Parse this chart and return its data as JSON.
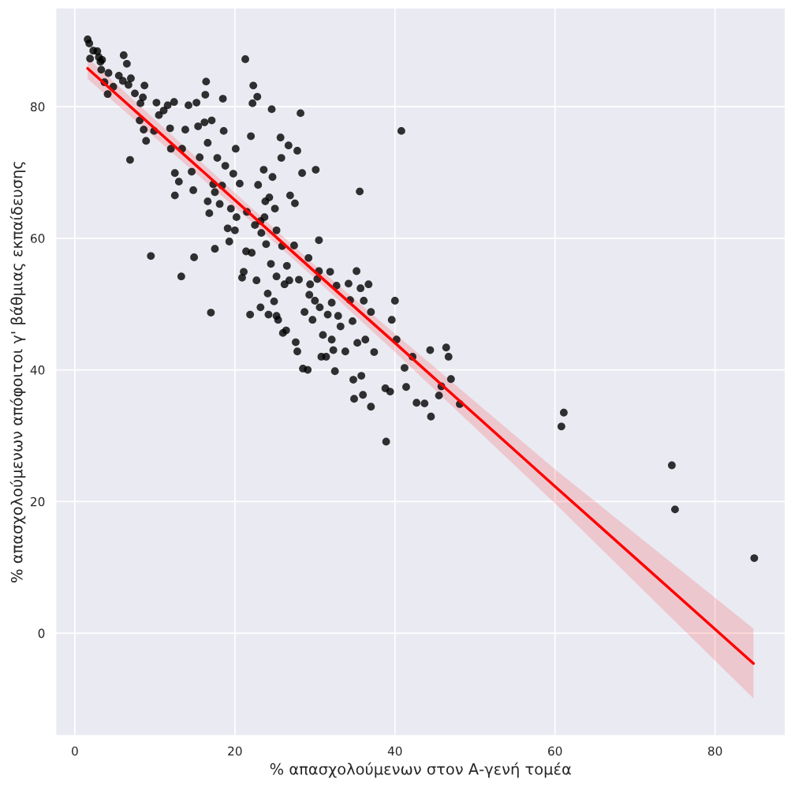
{
  "chart_data": {
    "type": "scatter",
    "xlabel": "% απασχολούμενων στον Α-γενή τομέα",
    "ylabel": "% απασχολούμενων απόφοιτοι γ' βάθμιας εκπαίδευσης",
    "xlim": [
      -2.4,
      88.8
    ],
    "ylim": [
      -15.6,
      95.0
    ],
    "xticks": [
      0,
      20,
      40,
      60,
      80
    ],
    "yticks": [
      0,
      20,
      40,
      60,
      80
    ],
    "grid": true,
    "series": [
      {
        "color": "#000000",
        "marker": "circle",
        "x": [
          1.6,
          1.8,
          1.9,
          2.3,
          2.8,
          3.0,
          3.2,
          3.4,
          3.3,
          3.7,
          4.2,
          4.1,
          4.8,
          5.5,
          6.0,
          6.1,
          6.5,
          6.7,
          7.0,
          6.9,
          7.5,
          8.2,
          8.1,
          8.5,
          8.7,
          8.9,
          8.6,
          9.5,
          9.9,
          10.2,
          10.5,
          11.1,
          11.6,
          11.9,
          12.0,
          12.4,
          12.5,
          12.5,
          13.0,
          13.3,
          13.4,
          13.8,
          14.2,
          14.6,
          14.8,
          14.9,
          15.2,
          15.4,
          15.6,
          16.2,
          16.3,
          16.4,
          16.6,
          16.6,
          16.8,
          17.0,
          17.1,
          17.3,
          17.5,
          17.5,
          17.8,
          18.1,
          18.4,
          18.6,
          18.5,
          18.8,
          19.1,
          19.3,
          19.5,
          19.8,
          20.0,
          20.1,
          20.2,
          20.6,
          20.9,
          21.1,
          21.3,
          21.4,
          21.5,
          21.9,
          22.0,
          22.1,
          22.2,
          22.3,
          22.5,
          22.7,
          22.8,
          22.9,
          23.2,
          23.3,
          23.6,
          23.7,
          23.9,
          24.1,
          24.2,
          24.3,
          24.5,
          24.6,
          24.7,
          24.9,
          25.0,
          25.2,
          25.4,
          25.7,
          25.8,
          25.9,
          26.0,
          26.2,
          26.5,
          26.7,
          26.9,
          27.4,
          27.5,
          27.6,
          27.8,
          27.8,
          28.0,
          28.2,
          28.4,
          28.5,
          28.7,
          29.1,
          29.2,
          29.3,
          29.7,
          30.0,
          30.1,
          30.3,
          30.5,
          30.6,
          30.8,
          31.0,
          31.4,
          31.6,
          31.9,
          32.1,
          32.3,
          32.5,
          32.7,
          32.9,
          33.2,
          33.8,
          34.2,
          34.4,
          34.7,
          34.8,
          34.9,
          35.2,
          35.3,
          35.6,
          35.7,
          35.8,
          36.0,
          36.1,
          36.3,
          36.7,
          37.0,
          37.0,
          37.4,
          38.8,
          38.9,
          39.4,
          39.6,
          40.0,
          40.2,
          40.8,
          41.2,
          41.4,
          42.2,
          42.7,
          43.7,
          44.4,
          44.5,
          45.5,
          45.8,
          46.4,
          46.7,
          47.0,
          48.1,
          60.8,
          61.1,
          74.6,
          75.0,
          84.9,
          23.2,
          23.8,
          25.2,
          26.8,
          29.4,
          32.1,
          30.5,
          25.2,
          26.4
        ],
        "values": [
          90.2,
          89.6,
          87.3,
          88.5,
          88.4,
          87.5,
          86.8,
          87.1,
          85.6,
          83.7,
          85.1,
          81.9,
          83.0,
          84.7,
          83.9,
          87.8,
          86.5,
          83.3,
          84.3,
          71.9,
          82.0,
          80.5,
          77.9,
          81.4,
          83.2,
          74.8,
          76.5,
          57.3,
          76.3,
          80.6,
          78.7,
          79.4,
          80.2,
          76.7,
          73.6,
          80.7,
          69.9,
          66.5,
          68.6,
          54.2,
          73.6,
          76.5,
          80.2,
          70.1,
          67.3,
          57.1,
          80.6,
          77.0,
          72.3,
          77.6,
          81.8,
          83.8,
          74.5,
          65.6,
          63.8,
          48.7,
          77.9,
          68.2,
          67.0,
          58.4,
          72.2,
          65.2,
          68.0,
          76.3,
          81.2,
          71.0,
          61.5,
          59.5,
          64.5,
          69.8,
          61.2,
          73.6,
          63.2,
          68.3,
          54.0,
          54.9,
          87.2,
          58.0,
          64.0,
          48.4,
          75.5,
          57.8,
          80.5,
          83.2,
          62.0,
          53.6,
          81.5,
          68.1,
          49.5,
          60.8,
          70.4,
          63.2,
          59.1,
          51.6,
          48.4,
          66.2,
          56.1,
          79.6,
          69.3,
          50.4,
          64.5,
          54.2,
          47.6,
          75.3,
          72.2,
          58.8,
          45.6,
          53.0,
          55.8,
          74.1,
          66.5,
          58.9,
          65.3,
          44.2,
          73.3,
          42.8,
          53.7,
          79.0,
          69.9,
          40.2,
          48.8,
          40.0,
          57.0,
          51.4,
          47.6,
          50.5,
          70.4,
          53.8,
          59.7,
          49.5,
          42.0,
          45.3,
          42.0,
          48.4,
          54.9,
          44.6,
          43.0,
          39.8,
          52.8,
          48.2,
          46.6,
          42.8,
          53.1,
          50.6,
          47.4,
          38.5,
          35.6,
          55.0,
          44.1,
          67.1,
          52.4,
          39.1,
          36.2,
          50.5,
          44.6,
          53.0,
          48.8,
          34.4,
          42.7,
          37.2,
          29.1,
          36.7,
          47.6,
          50.5,
          44.6,
          76.3,
          40.3,
          37.4,
          42.0,
          35.0,
          34.9,
          43.0,
          32.9,
          36.1,
          37.5,
          43.4,
          42.0,
          38.6,
          34.8,
          31.4,
          33.5,
          25.5,
          18.8,
          11.4,
          62.6,
          65.6,
          61.2,
          53.6,
          53.0,
          50.2,
          55.0,
          48.2,
          46.0
        ]
      },
      {
        "type": "line",
        "color": "#ff0000",
        "line_style": "solid",
        "x": [
          1.6,
          20,
          30,
          40,
          60,
          84.8
        ],
        "values": [
          85.8,
          65.8,
          54.9,
          44.1,
          22.3,
          -4.6
        ],
        "lower": [
          84.2,
          64.7,
          53.9,
          42.7,
          19.7,
          -9.9
        ],
        "upper": [
          87.4,
          66.9,
          55.9,
          45.5,
          24.9,
          0.7
        ]
      }
    ]
  }
}
